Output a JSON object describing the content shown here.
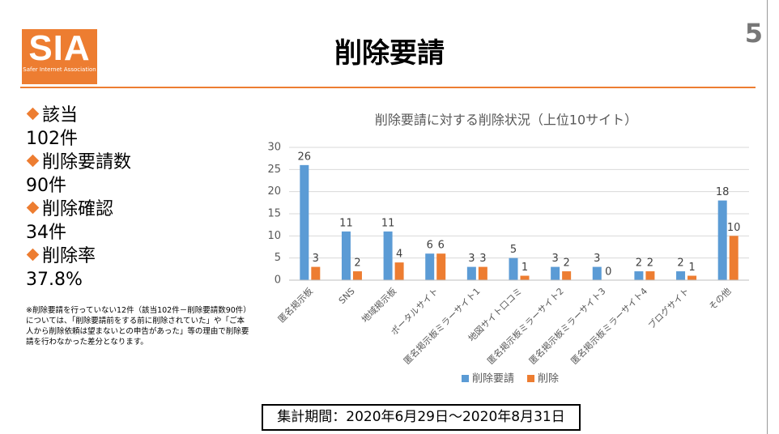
{
  "header": {
    "logo": "SIA",
    "logo_sub": "Safer Internet Association",
    "title": "削除要請",
    "page": "5"
  },
  "stats": [
    {
      "label": "該当",
      "value": "102件"
    },
    {
      "label": "削除要請数",
      "value": "90件"
    },
    {
      "label": "削除確認",
      "value": "34件"
    },
    {
      "label": "削除率",
      "value": "37.8%"
    }
  ],
  "note": "※削除要請を行っていない12件（該当102件－削除要請数90件）については、「削除要請前をする前に削除されていた」や「ご本人から削除依頼は望まないとの申告があった」等の理由で削除要請を行わなかった差分となります。",
  "period": "集計期間：2020年6月29日～2020年8月31日",
  "chart_data": {
    "type": "bar",
    "title": "削除要請に対する削除状況（上位10サイト）",
    "categories": [
      "匿名掲示板",
      "SNS",
      "地域掲示板",
      "ポータルサイト",
      "匿名掲示板ミラーサイト1",
      "地図サイト口コミ",
      "匿名掲示板ミラーサイト2",
      "匿名掲示板ミラーサイト3",
      "匿名掲示板ミラーサイト4",
      "ブログサイト",
      "その他"
    ],
    "series": [
      {
        "name": "削除要請",
        "color": "#5b9bd5",
        "values": [
          26,
          11,
          11,
          6,
          3,
          5,
          3,
          3,
          2,
          2,
          18
        ]
      },
      {
        "name": "削除",
        "color": "#ed7d31",
        "values": [
          3,
          2,
          4,
          6,
          3,
          1,
          2,
          0,
          2,
          1,
          10
        ]
      }
    ],
    "ylim": [
      0,
      30
    ],
    "yticks": [
      0,
      5,
      10,
      15,
      20,
      25,
      30
    ],
    "grid": true,
    "legend": "bottom"
  }
}
